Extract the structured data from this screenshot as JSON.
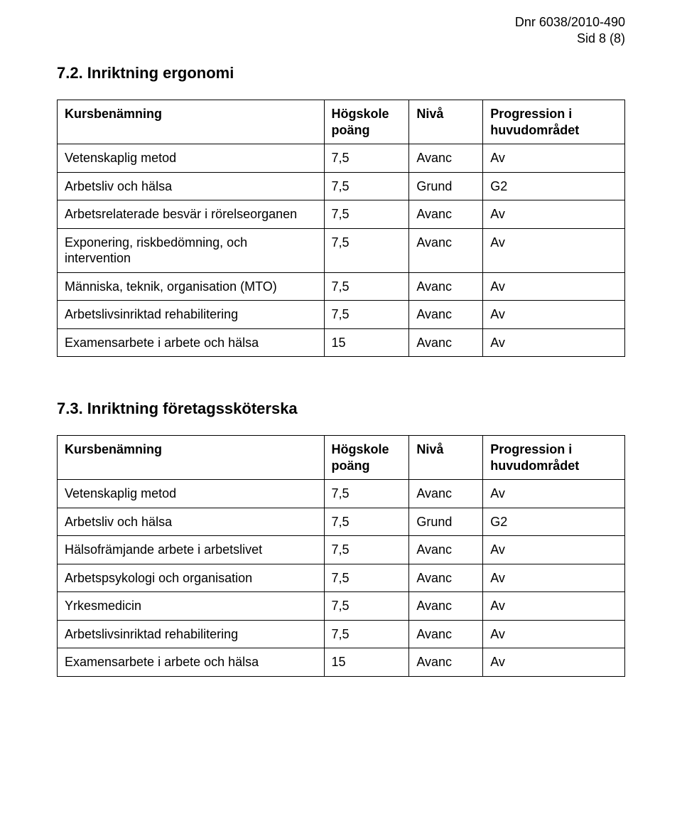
{
  "header": {
    "dnr": "Dnr 6038/2010-490",
    "page": "Sid 8 (8)"
  },
  "section1": {
    "heading": "7.2. Inriktning ergonomi",
    "columns": {
      "c1": "Kursbenämning",
      "c2": "Högskole poäng",
      "c3": "Nivå",
      "c4": "Progression i huvudområdet"
    },
    "rows": [
      {
        "c1": "Vetenskaplig metod",
        "c2": "7,5",
        "c3": "Avanc",
        "c4": "Av"
      },
      {
        "c1": "Arbetsliv och hälsa",
        "c2": "7,5",
        "c3": "Grund",
        "c4": "G2"
      },
      {
        "c1": "Arbetsrelaterade besvär i rörelseorganen",
        "c2": "7,5",
        "c3": "Avanc",
        "c4": "Av"
      },
      {
        "c1": "Exponering, riskbedömning, och intervention",
        "c2": "7,5",
        "c3": "Avanc",
        "c4": "Av"
      },
      {
        "c1": "Människa, teknik, organisation (MTO)",
        "c2": "7,5",
        "c3": "Avanc",
        "c4": "Av"
      },
      {
        "c1": "Arbetslivsinriktad rehabilitering",
        "c2": "7,5",
        "c3": "Avanc",
        "c4": "Av"
      },
      {
        "c1": "Examensarbete i arbete och hälsa",
        "c2": "15",
        "c3": "Avanc",
        "c4": "Av"
      }
    ]
  },
  "section2": {
    "heading": "7.3. Inriktning företagssköterska",
    "columns": {
      "c1": "Kursbenämning",
      "c2": "Högskole poäng",
      "c3": "Nivå",
      "c4": "Progression i huvudområdet"
    },
    "rows": [
      {
        "c1": "Vetenskaplig metod",
        "c2": "7,5",
        "c3": "Avanc",
        "c4": "Av"
      },
      {
        "c1": "Arbetsliv och hälsa",
        "c2": "7,5",
        "c3": "Grund",
        "c4": "G2"
      },
      {
        "c1": "Hälsofrämjande arbete i arbetslivet",
        "c2": "7,5",
        "c3": "Avanc",
        "c4": "Av"
      },
      {
        "c1": "Arbetspsykologi och organisation",
        "c2": "7,5",
        "c3": "Avanc",
        "c4": "Av"
      },
      {
        "c1": "Yrkesmedicin",
        "c2": "7,5",
        "c3": "Avanc",
        "c4": "Av"
      },
      {
        "c1": "Arbetslivsinriktad rehabilitering",
        "c2": "7,5",
        "c3": "Avanc",
        "c4": "Av"
      },
      {
        "c1": "Examensarbete i arbete och hälsa",
        "c2": "15",
        "c3": "Avanc",
        "c4": "Av"
      }
    ]
  }
}
